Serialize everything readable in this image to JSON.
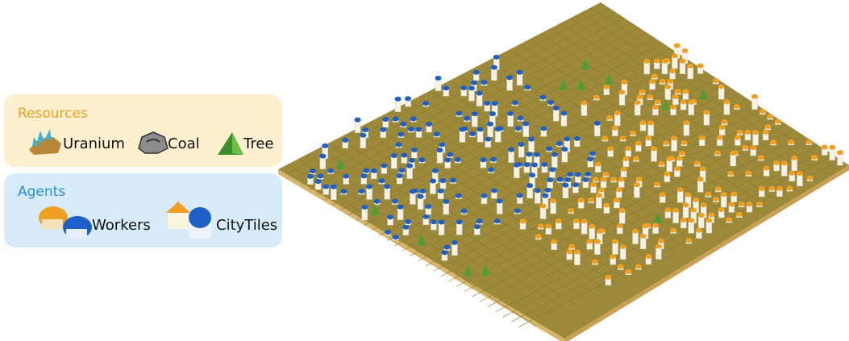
{
  "legend": {
    "resources": {
      "title": "Resources",
      "items": [
        "Uranium",
        "Coal",
        "Tree"
      ]
    },
    "agents": {
      "title": "Agents",
      "items": [
        "Workers",
        "CityTiles"
      ]
    }
  }
}
